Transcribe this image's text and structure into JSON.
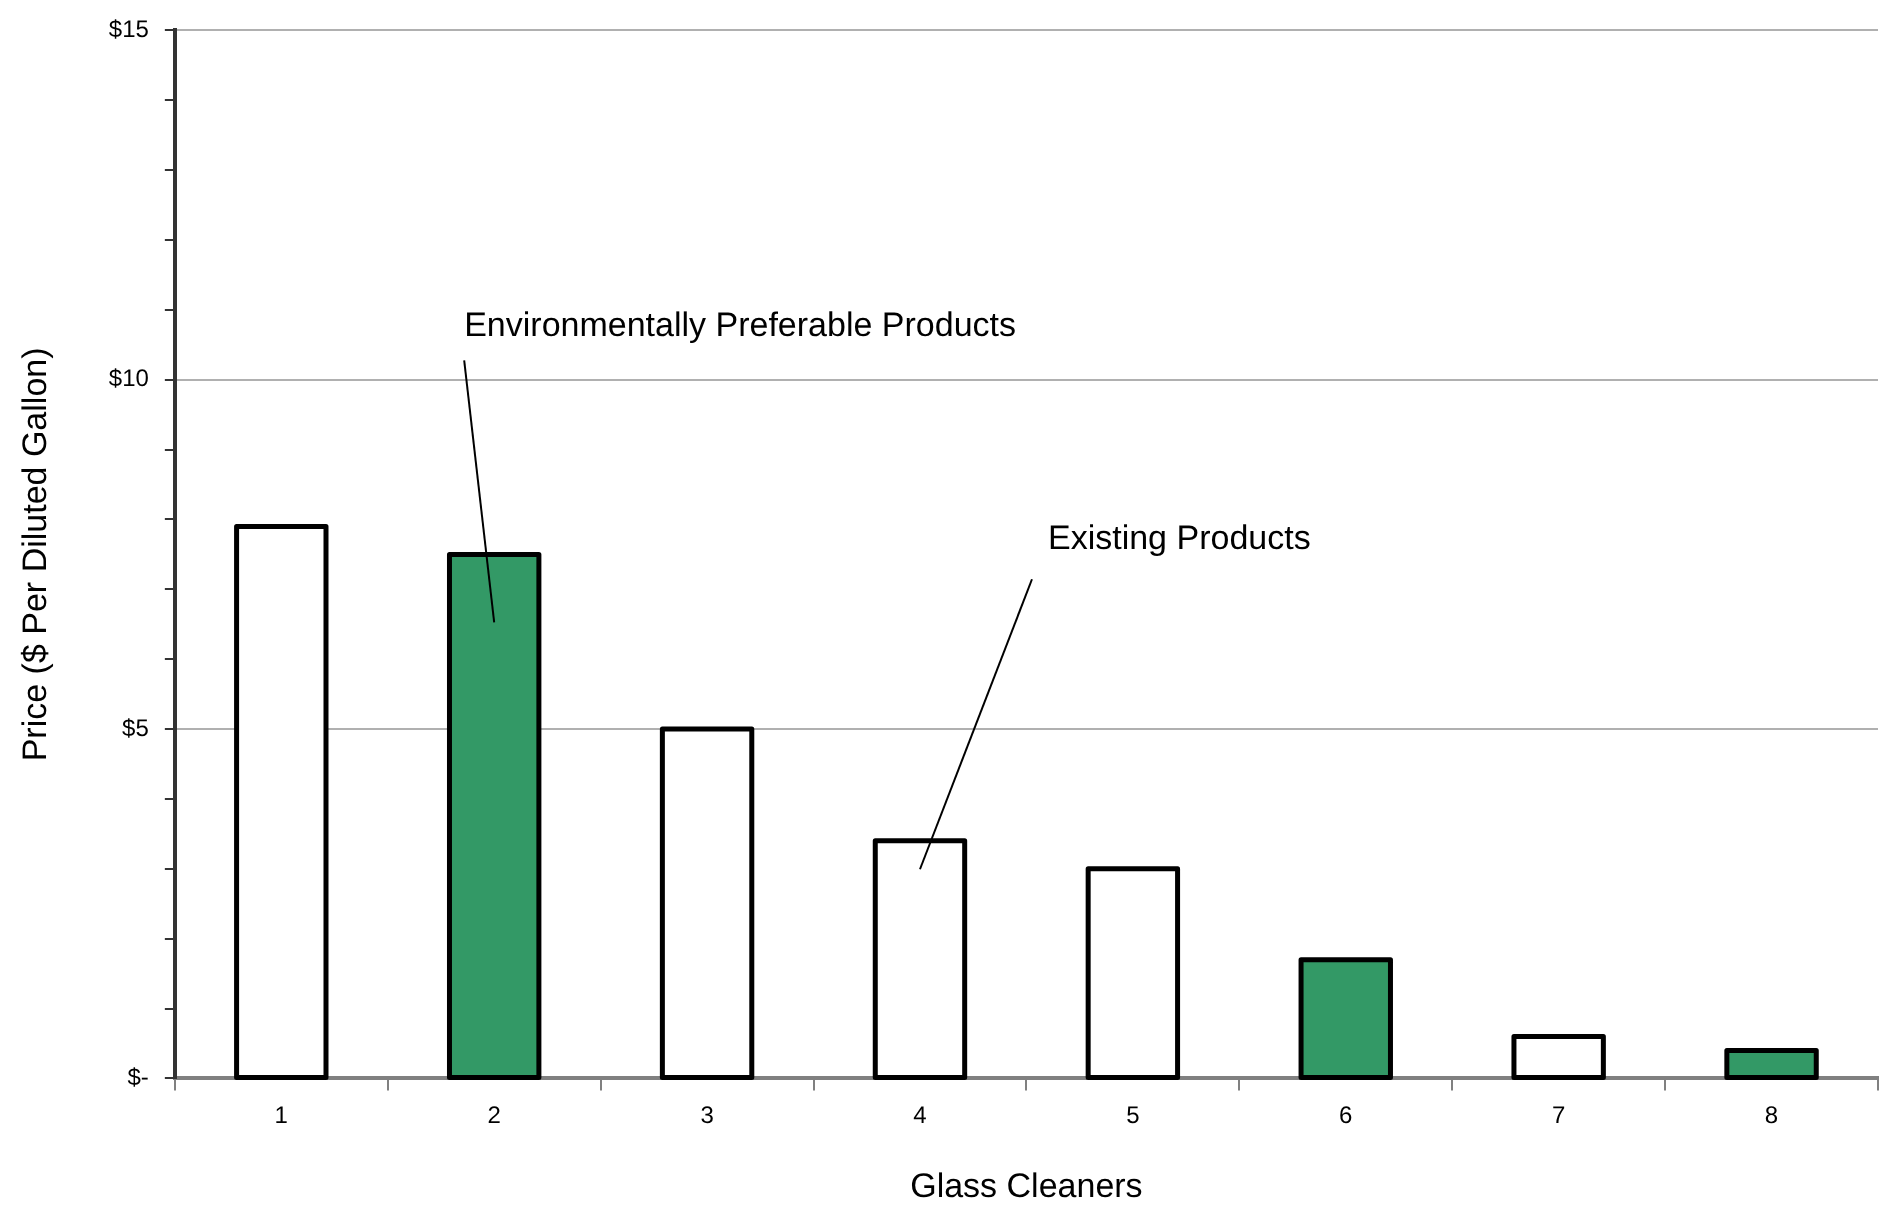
{
  "chart_data": {
    "type": "bar",
    "xlabel": "Glass Cleaners",
    "ylabel": "Price ($ Per Diluted Gallon)",
    "categories": [
      "1",
      "2",
      "3",
      "4",
      "5",
      "6",
      "7",
      "8"
    ],
    "values": [
      7.9,
      7.5,
      5.0,
      3.4,
      3.0,
      1.7,
      0.6,
      0.4
    ],
    "colors": [
      "#ffffff",
      "#339966",
      "#ffffff",
      "#ffffff",
      "#ffffff",
      "#339966",
      "#ffffff",
      "#339966"
    ],
    "ylim": [
      0,
      15
    ],
    "yticks": [
      {
        "value": 0,
        "label": "$-"
      },
      {
        "value": 1,
        "label": null
      },
      {
        "value": 2,
        "label": null
      },
      {
        "value": 3,
        "label": null
      },
      {
        "value": 4,
        "label": null
      },
      {
        "value": 5,
        "label": "$5"
      },
      {
        "value": 6,
        "label": null
      },
      {
        "value": 7,
        "label": null
      },
      {
        "value": 8,
        "label": null
      },
      {
        "value": 9,
        "label": null
      },
      {
        "value": 10,
        "label": "$10"
      },
      {
        "value": 11,
        "label": null
      },
      {
        "value": 12,
        "label": null
      },
      {
        "value": 13,
        "label": null
      },
      {
        "value": 14,
        "label": null
      },
      {
        "value": 15,
        "label": "$15"
      }
    ],
    "grid": "y",
    "legend": false,
    "annotations": [
      "Environmentally Preferable Products",
      "Existing Products"
    ]
  }
}
